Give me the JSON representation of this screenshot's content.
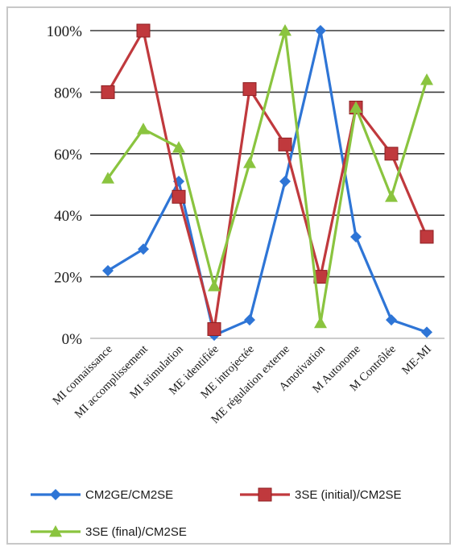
{
  "chart_data": {
    "type": "line",
    "categories": [
      "MI connaissance",
      "MI accomplissement",
      "MI stimulation",
      "ME identifiée",
      "ME introjectée",
      "ME régulation externe",
      "Amotivation",
      "M Autonome",
      "M Contrôlée",
      "ME-MI"
    ],
    "series": [
      {
        "name": "CM2GE/CM2SE",
        "color": "#2e75d6",
        "marker": "diamond",
        "values": [
          22,
          29,
          51,
          1,
          6,
          51,
          100,
          33,
          6,
          2
        ]
      },
      {
        "name": "3SE (initial)/CM2SE",
        "color": "#c0393d",
        "marker": "square",
        "values": [
          80,
          100,
          46,
          3,
          81,
          63,
          20,
          75,
          60,
          33
        ]
      },
      {
        "name": "3SE (final)/CM2SE",
        "color": "#8ac43f",
        "marker": "triangle",
        "values": [
          52,
          68,
          62,
          17,
          57,
          100,
          5,
          75,
          46,
          84
        ]
      }
    ],
    "y_ticks": [
      "0%",
      "20%",
      "40%",
      "60%",
      "80%",
      "100%"
    ],
    "ylim": [
      0,
      100
    ],
    "grid": true,
    "legend_position": "bottom",
    "title": "",
    "xlabel": "",
    "ylabel": ""
  }
}
